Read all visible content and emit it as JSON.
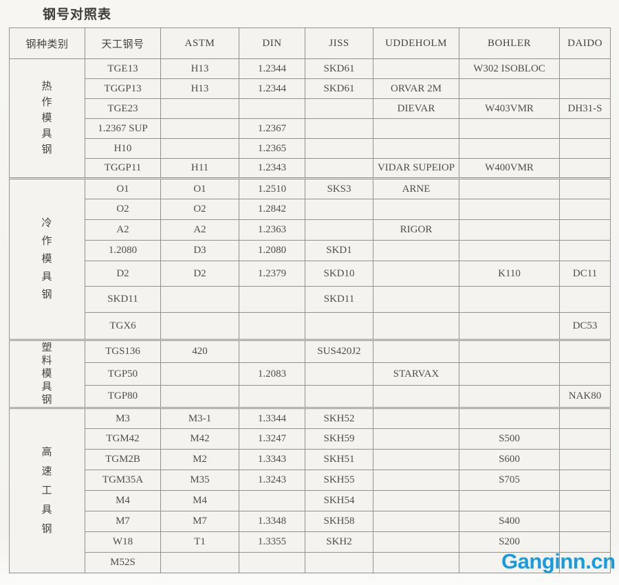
{
  "page": {
    "title": "钢号对照表"
  },
  "watermark": {
    "text": "Ganginn.cn",
    "color": "#189BDF"
  },
  "table": {
    "headers": [
      "钢种类别",
      "天工钢号",
      "ASTM",
      "DIN",
      "JISS",
      "UDDEHOLM",
      "BOHLER",
      "DAIDO"
    ],
    "groups": [
      {
        "category": "热作模具钢",
        "rows": [
          [
            "TGE13",
            "H13",
            "1.2344",
            "SKD61",
            "",
            "W302 ISOBLOC",
            ""
          ],
          [
            "TGGP13",
            "H13",
            "1.2344",
            "SKD61",
            "ORVAR 2M",
            "",
            ""
          ],
          [
            "TGE23",
            "",
            "",
            "",
            "DIEVAR",
            "W403VMR",
            "DH31-S"
          ],
          [
            "1.2367 SUP",
            "",
            "1.2367",
            "",
            "",
            "",
            ""
          ],
          [
            "H10",
            "",
            "1.2365",
            "",
            "",
            "",
            ""
          ],
          [
            "TGGP11",
            "H11",
            "1.2343",
            "",
            "VIDAR SUPEIOP",
            "W400VMR",
            ""
          ]
        ]
      },
      {
        "category": "冷作模具钢",
        "rows": [
          [
            "O1",
            "O1",
            "1.2510",
            "SKS3",
            "ARNE",
            "",
            ""
          ],
          [
            "O2",
            "O2",
            "1.2842",
            "",
            "",
            "",
            ""
          ],
          [
            "A2",
            "A2",
            "1.2363",
            "",
            "RIGOR",
            "",
            ""
          ],
          [
            "1.2080",
            "D3",
            "1.2080",
            "SKD1",
            "",
            "",
            ""
          ],
          [
            "D2",
            "D2",
            "1.2379",
            "SKD10",
            "",
            "K110",
            "DC11"
          ],
          [
            "SKD11",
            "",
            "",
            "SKD11",
            "",
            "",
            ""
          ],
          [
            "TGX6",
            "",
            "",
            "",
            "",
            "",
            "DC53"
          ]
        ]
      },
      {
        "category": "塑料模具钢",
        "rows": [
          [
            "TGS136",
            "420",
            "",
            "SUS420J2",
            "",
            "",
            ""
          ],
          [
            "TGP50",
            "",
            "1.2083",
            "",
            "STARVAX",
            "",
            ""
          ],
          [
            "TGP80",
            "",
            "",
            "",
            "",
            "",
            "NAK80"
          ]
        ]
      },
      {
        "category": "高速工具钢",
        "rows": [
          [
            "M3",
            "M3-1",
            "1.3344",
            "SKH52",
            "",
            "",
            ""
          ],
          [
            "TGM42",
            "M42",
            "1.3247",
            "SKH59",
            "",
            "S500",
            ""
          ],
          [
            "TGM2B",
            "M2",
            "1.3343",
            "SKH51",
            "",
            "S600",
            ""
          ],
          [
            "TGM35A",
            "M35",
            "1.3243",
            "SKH55",
            "",
            "S705",
            ""
          ],
          [
            "M4",
            "M4",
            "",
            "SKH54",
            "",
            "",
            ""
          ],
          [
            "M7",
            "M7",
            "1.3348",
            "SKH58",
            "",
            "S400",
            ""
          ],
          [
            "W18",
            "T1",
            "1.3355",
            "SKH2",
            "",
            "S200",
            ""
          ],
          [
            "M52S",
            "",
            "",
            "",
            "",
            "",
            ""
          ]
        ]
      }
    ]
  }
}
